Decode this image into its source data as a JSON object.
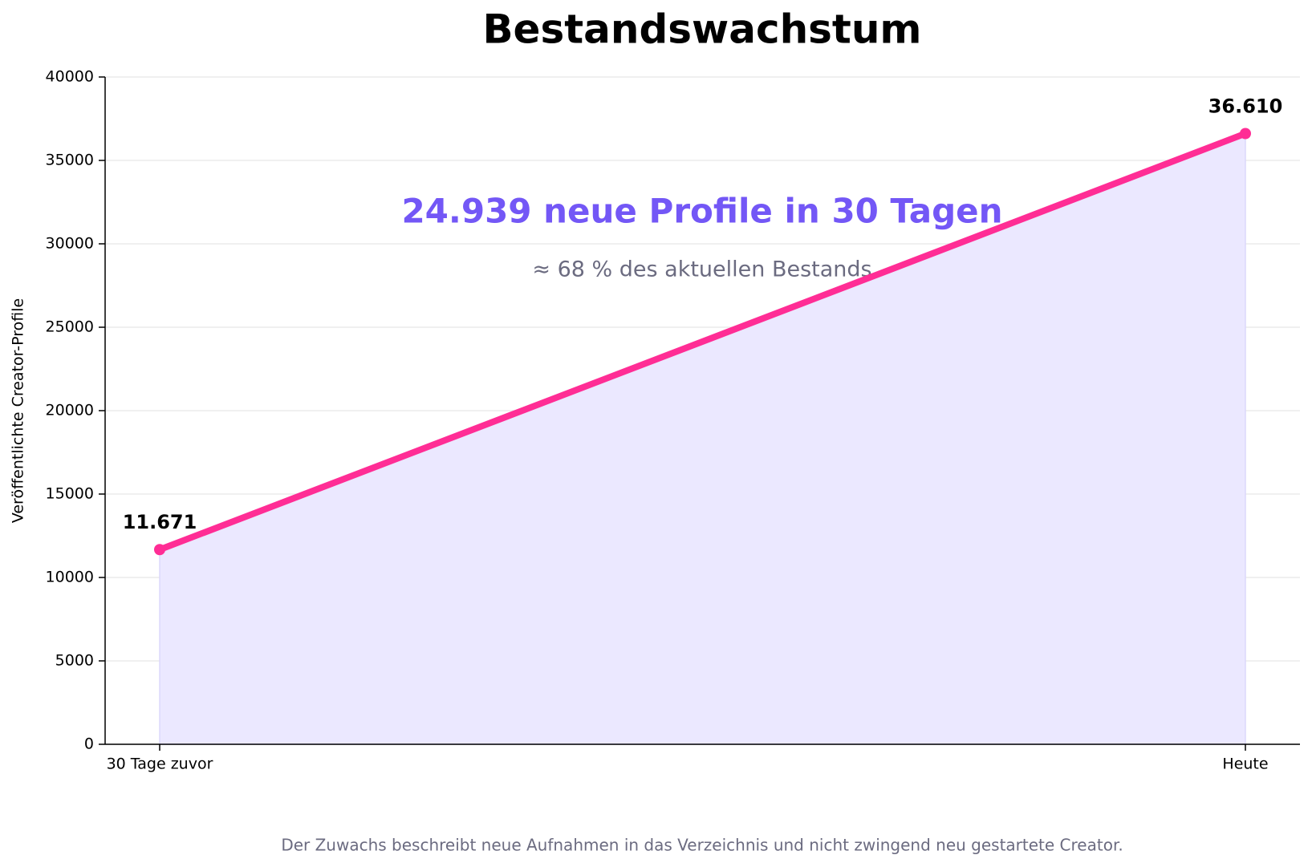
{
  "chart_data": {
    "type": "line",
    "title": "Bestandswachstum",
    "y_label": "Veröffentlichte Creator-Profile",
    "categories": [
      "30 Tage zuvor",
      "Heute"
    ],
    "values": [
      11671,
      36610
    ],
    "value_labels": [
      "11.671",
      "36.610"
    ],
    "color": "#ff2d95",
    "area_color": "#ebe8ff",
    "annotation": "24.939 neue Profile in 30 Tagen",
    "annotation_sub": "≈ 68 % des aktuellen Bestands",
    "footnote": "Der Zuwachs beschreibt neue Aufnahmen in das Verzeichnis und nicht zwingend neu gestartete Creator.",
    "ylim": [
      0,
      40000
    ],
    "yticks": [
      0,
      5000,
      10000,
      15000,
      20000,
      25000,
      30000,
      35000,
      40000
    ],
    "grid": true
  }
}
